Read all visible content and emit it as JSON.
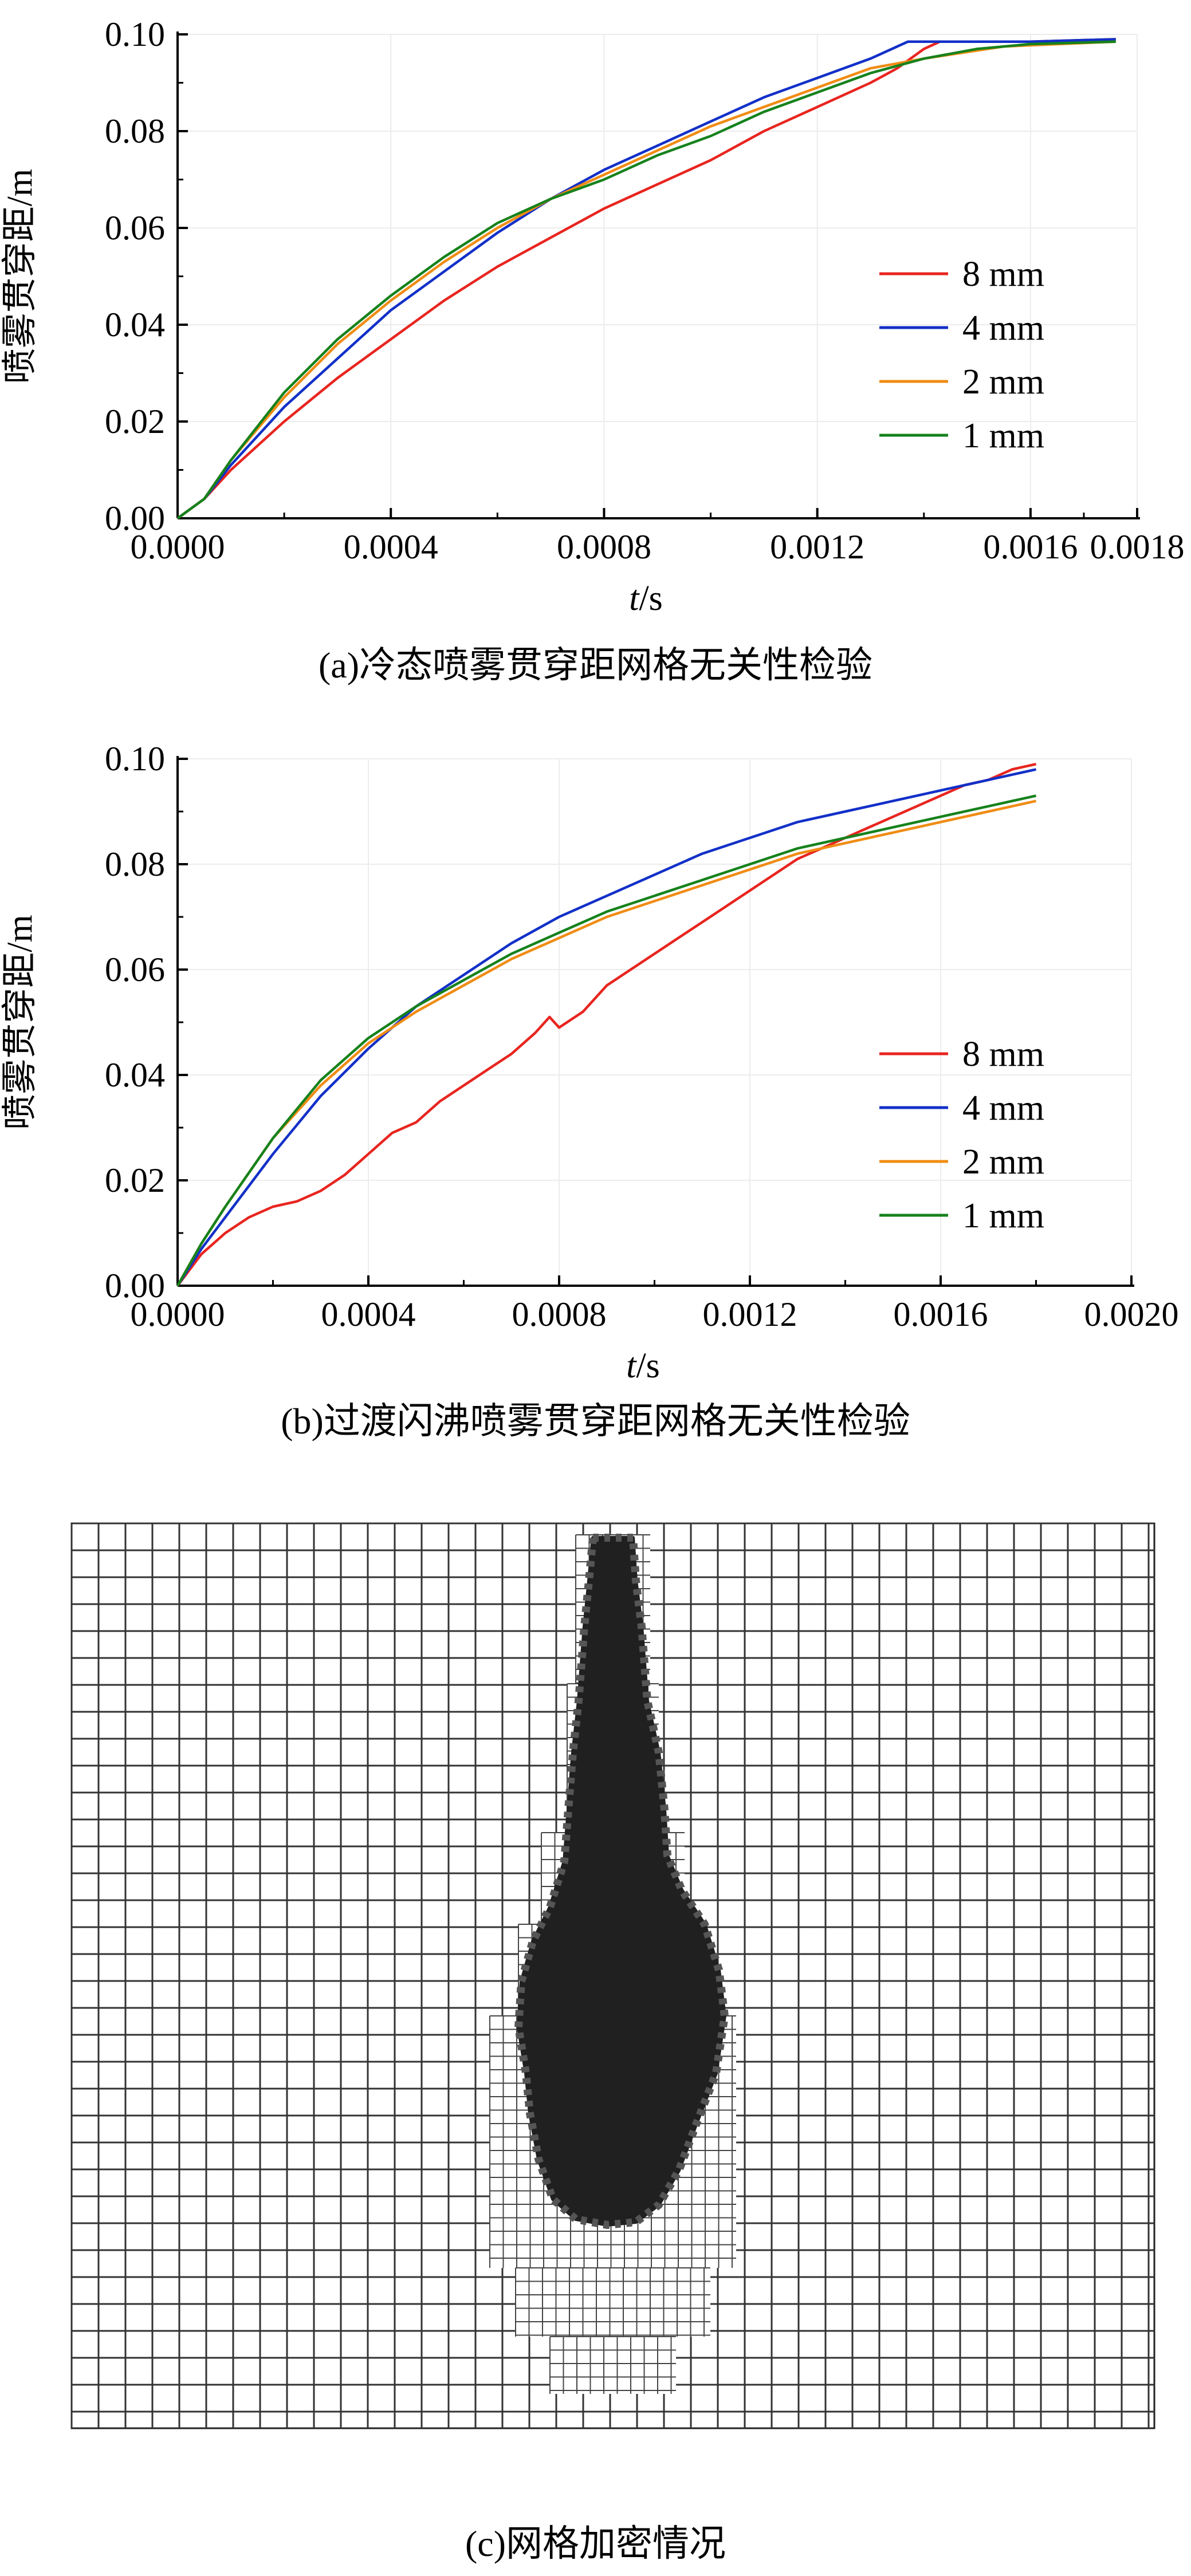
{
  "captions": {
    "a": "(a)冷态喷雾贯穿距网格无关性检验",
    "b": "(b)过渡闪沸喷雾贯穿距网格无关性检验",
    "c": "(c)网格加密情况"
  },
  "colors": {
    "8 mm": "#e8251f",
    "4 mm": "#1230c8",
    "2 mm": "#f08c14",
    "1 mm": "#16821c"
  },
  "chart_data": [
    {
      "type": "line",
      "id": "a",
      "title": "",
      "ylabel": "喷雾贯穿距/m",
      "xlabel_italic": "t",
      "xlabel_rest": "/s",
      "xlim": [
        0,
        0.0018
      ],
      "ylim": [
        0,
        0.1
      ],
      "xticks": [
        "0.0000",
        "0.0004",
        "0.0008",
        "0.0012",
        "0.0016",
        "0.0018"
      ],
      "yticks": [
        "0.00",
        "0.02",
        "0.04",
        "0.06",
        "0.08",
        "0.10"
      ],
      "xtick_values": [
        0,
        0.0004,
        0.0008,
        0.0012,
        0.0016,
        0.0018
      ],
      "ytick_values": [
        0,
        0.02,
        0.04,
        0.06,
        0.08,
        0.1
      ],
      "legend_position": "center-right",
      "series": [
        {
          "name": "8 mm",
          "points": [
            [
              0,
              0
            ],
            [
              5e-05,
              0.004
            ],
            [
              0.0001,
              0.01
            ],
            [
              0.0002,
              0.02
            ],
            [
              0.0003,
              0.029
            ],
            [
              0.0004,
              0.037
            ],
            [
              0.0005,
              0.045
            ],
            [
              0.0006,
              0.052
            ],
            [
              0.0007,
              0.058
            ],
            [
              0.0008,
              0.064
            ],
            [
              0.0009,
              0.069
            ],
            [
              0.001,
              0.074
            ],
            [
              0.0011,
              0.08
            ],
            [
              0.0012,
              0.085
            ],
            [
              0.0013,
              0.09
            ],
            [
              0.00135,
              0.093
            ],
            [
              0.0014,
              0.097
            ],
            [
              0.00143,
              0.0985
            ],
            [
              0.0016,
              0.0985
            ],
            [
              0.00176,
              0.099
            ]
          ]
        },
        {
          "name": "4 mm",
          "points": [
            [
              0,
              0
            ],
            [
              5e-05,
              0.004
            ],
            [
              0.0001,
              0.011
            ],
            [
              0.0002,
              0.023
            ],
            [
              0.0003,
              0.033
            ],
            [
              0.0004,
              0.043
            ],
            [
              0.0005,
              0.051
            ],
            [
              0.0006,
              0.059
            ],
            [
              0.0007,
              0.066
            ],
            [
              0.0008,
              0.072
            ],
            [
              0.0009,
              0.077
            ],
            [
              0.001,
              0.082
            ],
            [
              0.0011,
              0.087
            ],
            [
              0.0012,
              0.091
            ],
            [
              0.0013,
              0.095
            ],
            [
              0.00137,
              0.0985
            ],
            [
              0.0016,
              0.0985
            ],
            [
              0.00176,
              0.099
            ]
          ]
        },
        {
          "name": "2 mm",
          "points": [
            [
              0,
              0
            ],
            [
              5e-05,
              0.004
            ],
            [
              0.0001,
              0.012
            ],
            [
              0.0002,
              0.025
            ],
            [
              0.0003,
              0.036
            ],
            [
              0.0004,
              0.045
            ],
            [
              0.0005,
              0.053
            ],
            [
              0.0006,
              0.06
            ],
            [
              0.0007,
              0.066
            ],
            [
              0.0008,
              0.071
            ],
            [
              0.0009,
              0.076
            ],
            [
              0.001,
              0.081
            ],
            [
              0.0011,
              0.085
            ],
            [
              0.0012,
              0.089
            ],
            [
              0.0013,
              0.093
            ],
            [
              0.0014,
              0.095
            ],
            [
              0.00155,
              0.0975
            ],
            [
              0.00176,
              0.0985
            ]
          ]
        },
        {
          "name": "1 mm",
          "points": [
            [
              0,
              0
            ],
            [
              5e-05,
              0.004
            ],
            [
              0.0001,
              0.012
            ],
            [
              0.0002,
              0.026
            ],
            [
              0.0003,
              0.037
            ],
            [
              0.0004,
              0.046
            ],
            [
              0.0005,
              0.054
            ],
            [
              0.0006,
              0.061
            ],
            [
              0.0007,
              0.066
            ],
            [
              0.0008,
              0.07
            ],
            [
              0.0009,
              0.075
            ],
            [
              0.001,
              0.079
            ],
            [
              0.0011,
              0.084
            ],
            [
              0.0012,
              0.088
            ],
            [
              0.0013,
              0.092
            ],
            [
              0.0014,
              0.095
            ],
            [
              0.0015,
              0.097
            ],
            [
              0.0016,
              0.098
            ],
            [
              0.00176,
              0.0985
            ]
          ]
        }
      ]
    },
    {
      "type": "line",
      "id": "b",
      "title": "",
      "ylabel": "喷雾贯穿距/m",
      "xlabel_italic": "t",
      "xlabel_rest": "/s",
      "xlim": [
        0,
        0.002
      ],
      "ylim": [
        0,
        0.1
      ],
      "xticks": [
        "0.0000",
        "0.0004",
        "0.0008",
        "0.0012",
        "0.0016",
        "0.0020"
      ],
      "yticks": [
        "0.00",
        "0.02",
        "0.04",
        "0.06",
        "0.08",
        "0.10"
      ],
      "xtick_values": [
        0,
        0.0004,
        0.0008,
        0.0012,
        0.0016,
        0.002
      ],
      "ytick_values": [
        0,
        0.02,
        0.04,
        0.06,
        0.08,
        0.1
      ],
      "legend_position": "center-right",
      "series": [
        {
          "name": "8 mm",
          "points": [
            [
              0,
              0
            ],
            [
              5e-05,
              0.006
            ],
            [
              0.0001,
              0.01
            ],
            [
              0.00015,
              0.013
            ],
            [
              0.0002,
              0.015
            ],
            [
              0.00025,
              0.016
            ],
            [
              0.0003,
              0.018
            ],
            [
              0.00035,
              0.021
            ],
            [
              0.0004,
              0.025
            ],
            [
              0.00045,
              0.029
            ],
            [
              0.0005,
              0.031
            ],
            [
              0.00055,
              0.035
            ],
            [
              0.0006,
              0.038
            ],
            [
              0.00065,
              0.041
            ],
            [
              0.0007,
              0.044
            ],
            [
              0.00075,
              0.048
            ],
            [
              0.00078,
              0.051
            ],
            [
              0.0008,
              0.049
            ],
            [
              0.00085,
              0.052
            ],
            [
              0.0009,
              0.057
            ],
            [
              0.00095,
              0.06
            ],
            [
              0.001,
              0.063
            ],
            [
              0.00105,
              0.066
            ],
            [
              0.0011,
              0.069
            ],
            [
              0.00115,
              0.072
            ],
            [
              0.0012,
              0.075
            ],
            [
              0.00125,
              0.078
            ],
            [
              0.0013,
              0.081
            ],
            [
              0.00135,
              0.083
            ],
            [
              0.0014,
              0.085
            ],
            [
              0.00145,
              0.087
            ],
            [
              0.0015,
              0.089
            ],
            [
              0.00155,
              0.091
            ],
            [
              0.0016,
              0.093
            ],
            [
              0.00165,
              0.095
            ],
            [
              0.0017,
              0.096
            ],
            [
              0.00175,
              0.098
            ],
            [
              0.0018,
              0.099
            ]
          ]
        },
        {
          "name": "4 mm",
          "points": [
            [
              0,
              0
            ],
            [
              5e-05,
              0.007
            ],
            [
              0.0001,
              0.013
            ],
            [
              0.0002,
              0.025
            ],
            [
              0.0003,
              0.036
            ],
            [
              0.0004,
              0.045
            ],
            [
              0.0005,
              0.053
            ],
            [
              0.0006,
              0.059
            ],
            [
              0.0007,
              0.065
            ],
            [
              0.0008,
              0.07
            ],
            [
              0.0009,
              0.074
            ],
            [
              0.001,
              0.078
            ],
            [
              0.0011,
              0.082
            ],
            [
              0.0012,
              0.085
            ],
            [
              0.0013,
              0.088
            ],
            [
              0.0014,
              0.09
            ],
            [
              0.0015,
              0.092
            ],
            [
              0.0016,
              0.094
            ],
            [
              0.0017,
              0.096
            ],
            [
              0.0018,
              0.098
            ]
          ]
        },
        {
          "name": "2 mm",
          "points": [
            [
              0,
              0
            ],
            [
              5e-05,
              0.008
            ],
            [
              0.0001,
              0.015
            ],
            [
              0.0002,
              0.028
            ],
            [
              0.0003,
              0.038
            ],
            [
              0.0004,
              0.046
            ],
            [
              0.0005,
              0.052
            ],
            [
              0.0006,
              0.057
            ],
            [
              0.0007,
              0.062
            ],
            [
              0.0008,
              0.066
            ],
            [
              0.0009,
              0.07
            ],
            [
              0.001,
              0.073
            ],
            [
              0.0011,
              0.076
            ],
            [
              0.0012,
              0.079
            ],
            [
              0.0013,
              0.082
            ],
            [
              0.0014,
              0.084
            ],
            [
              0.0015,
              0.086
            ],
            [
              0.0016,
              0.088
            ],
            [
              0.0017,
              0.09
            ],
            [
              0.0018,
              0.092
            ]
          ]
        },
        {
          "name": "1 mm",
          "points": [
            [
              0,
              0
            ],
            [
              5e-05,
              0.008
            ],
            [
              0.0001,
              0.015
            ],
            [
              0.0002,
              0.028
            ],
            [
              0.0003,
              0.039
            ],
            [
              0.0004,
              0.047
            ],
            [
              0.0005,
              0.053
            ],
            [
              0.0006,
              0.058
            ],
            [
              0.0007,
              0.063
            ],
            [
              0.0008,
              0.067
            ],
            [
              0.0009,
              0.071
            ],
            [
              0.001,
              0.074
            ],
            [
              0.0011,
              0.077
            ],
            [
              0.0012,
              0.08
            ],
            [
              0.0013,
              0.083
            ],
            [
              0.0014,
              0.085
            ],
            [
              0.0015,
              0.087
            ],
            [
              0.0016,
              0.089
            ],
            [
              0.0017,
              0.091
            ],
            [
              0.0018,
              0.093
            ]
          ]
        }
      ]
    }
  ]
}
